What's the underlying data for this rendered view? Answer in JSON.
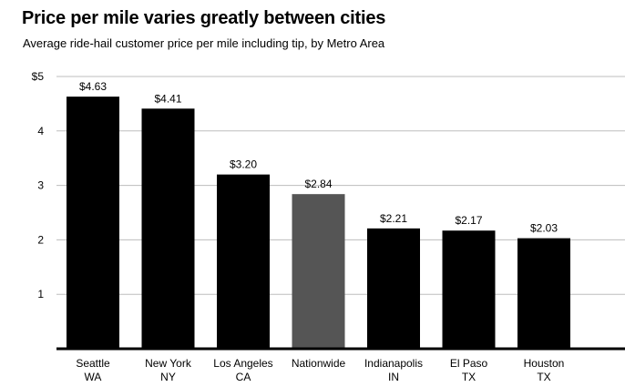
{
  "title": "Price per mile varies greatly between cities",
  "subtitle": "Average ride-hail customer price per mile including tip, by Metro Area",
  "chart_data": {
    "type": "bar",
    "title": "Price per mile varies greatly between cities",
    "subtitle": "Average ride-hail customer price per mile including tip, by Metro Area",
    "categories": [
      [
        "Seattle",
        "WA"
      ],
      [
        "New York",
        "NY"
      ],
      [
        "Los Angeles",
        "CA"
      ],
      [
        "Nationwide",
        ""
      ],
      [
        "Indianapolis",
        "IN"
      ],
      [
        "El Paso",
        "TX"
      ],
      [
        "Houston",
        "TX"
      ]
    ],
    "values": [
      4.63,
      4.41,
      3.2,
      2.84,
      2.21,
      2.17,
      2.03
    ],
    "data_labels": [
      "$4.63",
      "$4.41",
      "$3.20",
      "$2.84",
      "$2.21",
      "$2.17",
      "$2.03"
    ],
    "highlight_index": 3,
    "colors": {
      "bar": "#000000",
      "highlight": "#555555",
      "grid": "#bdbdbd",
      "axis": "#000000"
    },
    "ylim": [
      0,
      5
    ],
    "yticks": [
      1,
      2,
      3,
      4,
      5
    ],
    "ytick_labels": [
      "1",
      "2",
      "3",
      "4",
      "$5"
    ],
    "grid": true,
    "xlabel": "",
    "ylabel": ""
  }
}
